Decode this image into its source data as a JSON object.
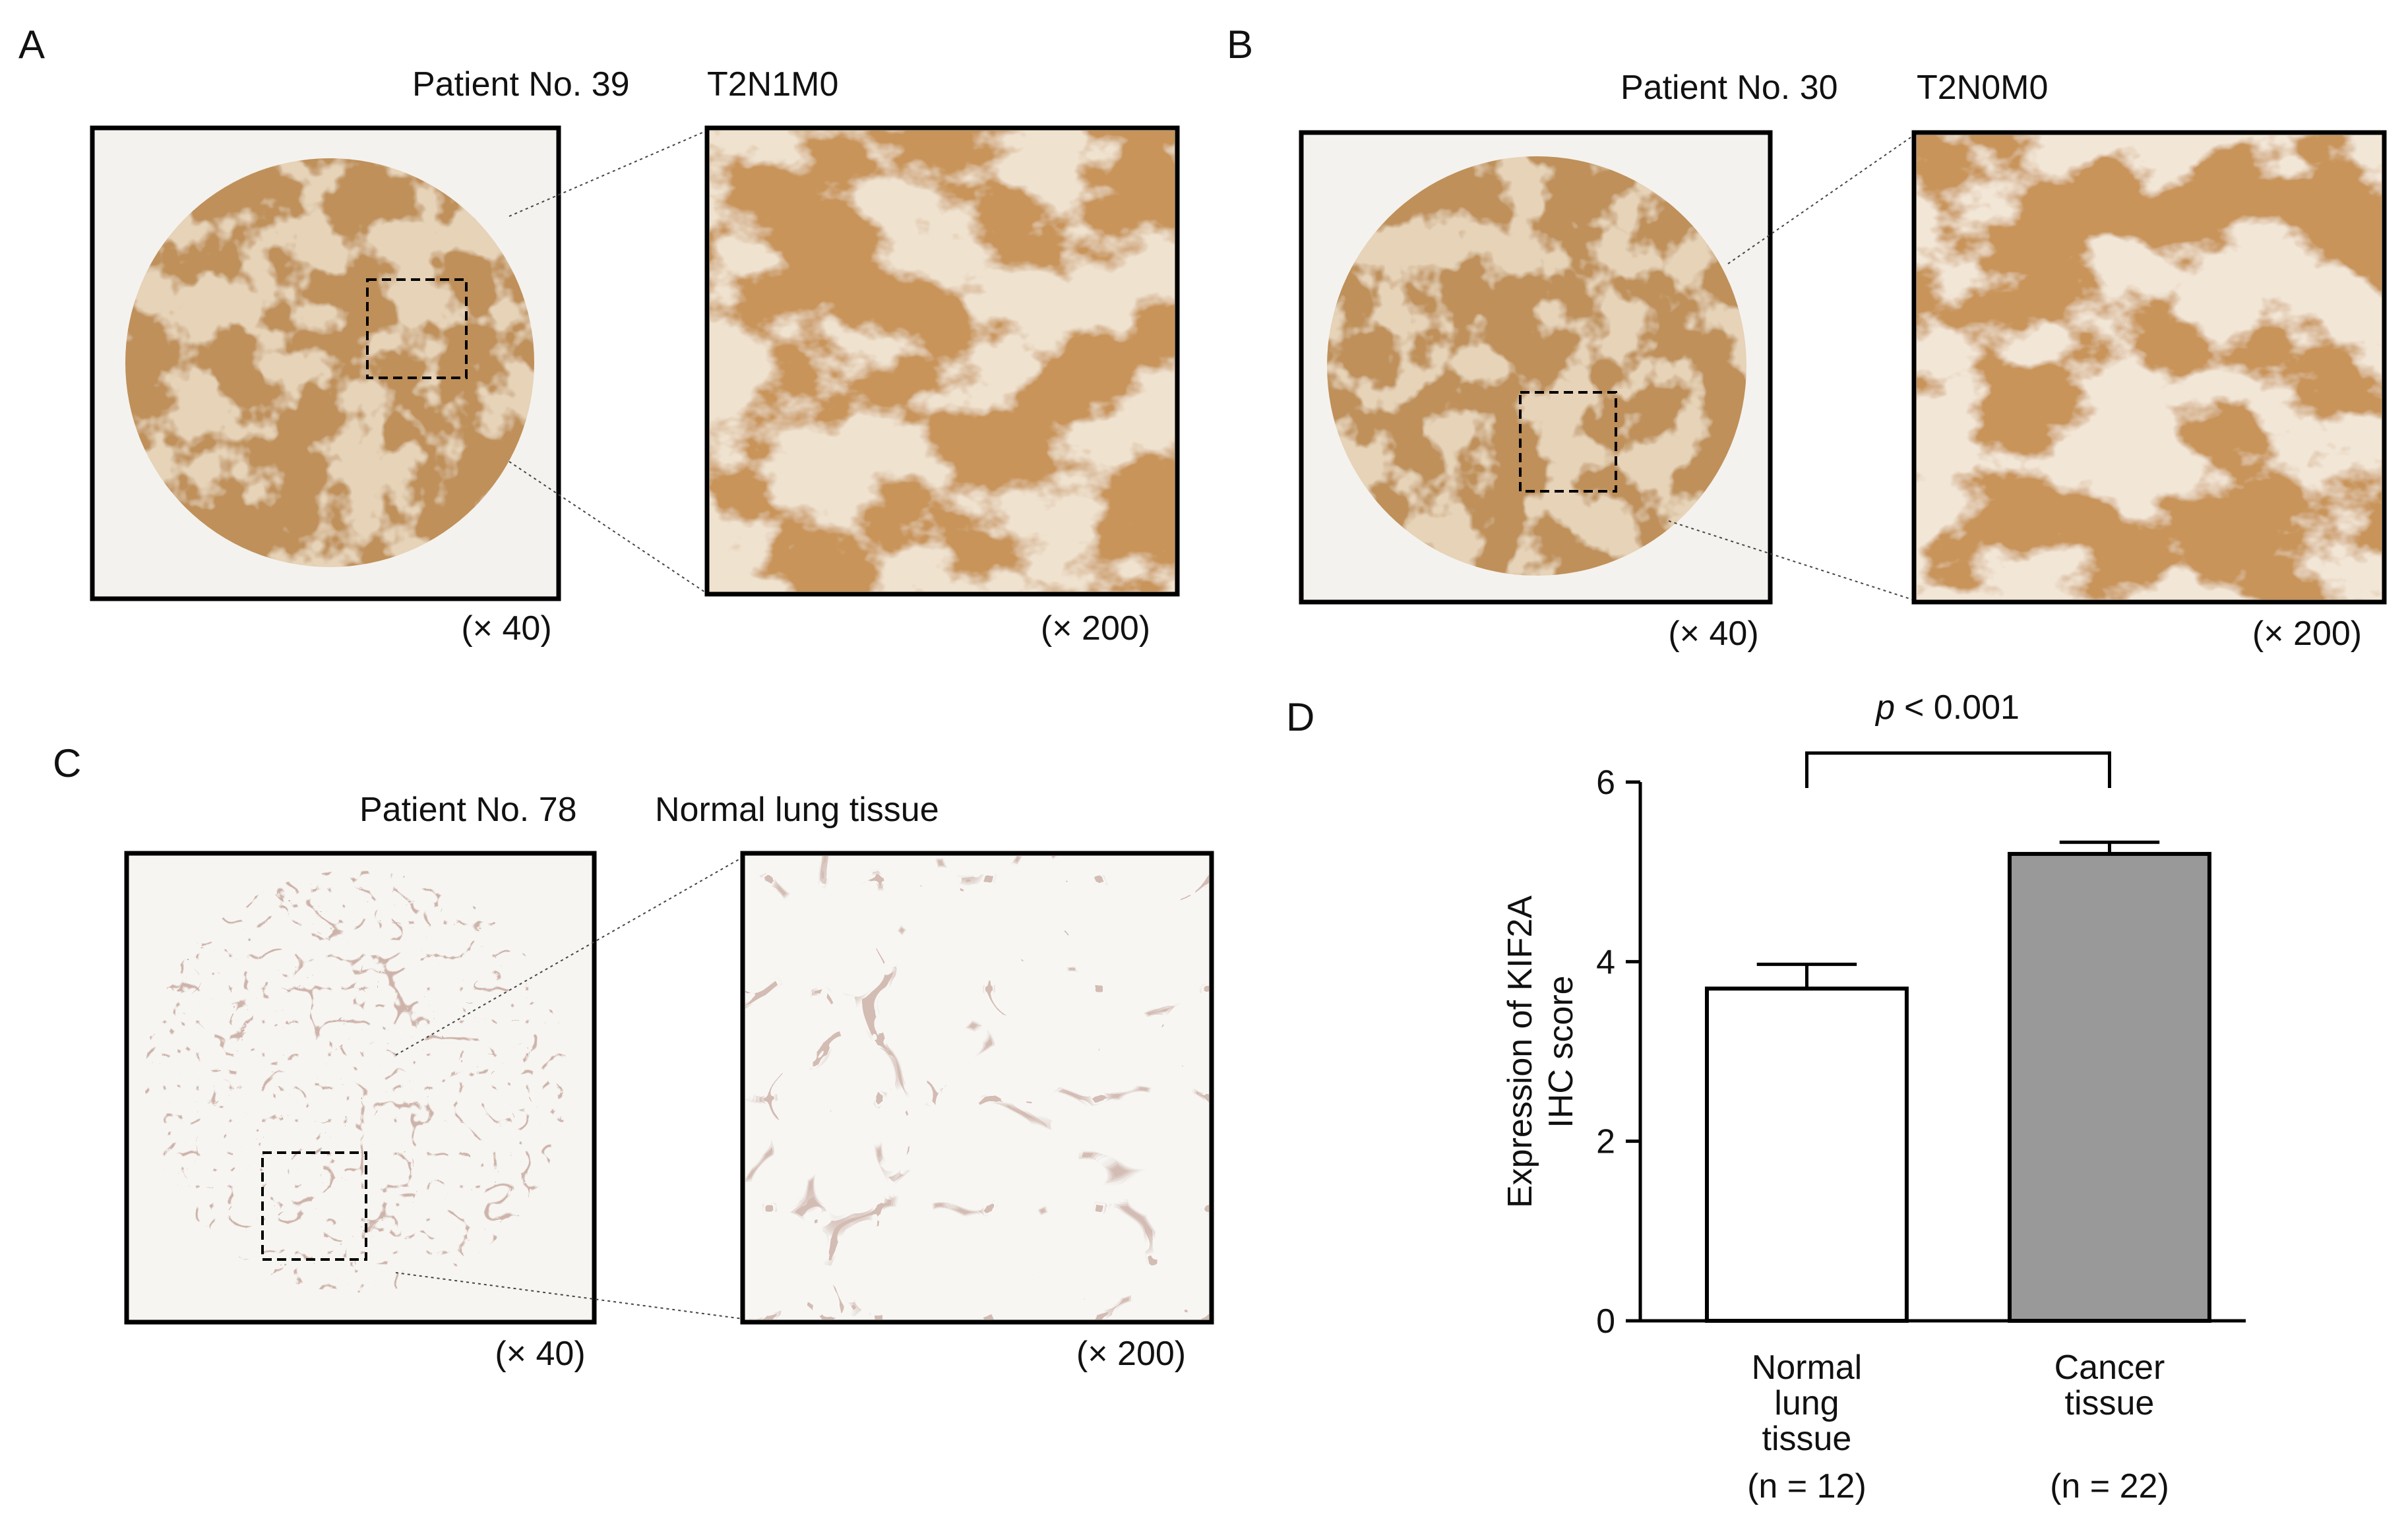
{
  "panels": [
    {
      "letter": "A",
      "patient": "Patient No. 39",
      "stage": "T2N1M0",
      "mag_low": "(× 40)",
      "mag_high": "(× 200)"
    },
    {
      "letter": "B",
      "patient": "Patient No. 30",
      "stage": "T2N0M0",
      "mag_low": "(× 40)",
      "mag_high": "(× 200)"
    },
    {
      "letter": "C",
      "patient": "Patient No. 78",
      "stage": "Normal lung tissue",
      "mag_low": "(× 40)",
      "mag_high": "(× 200)"
    }
  ],
  "chart_data": {
    "type": "bar",
    "panel_label": "D",
    "ylabel": [
      "Expression of KIF2A",
      "IHC score"
    ],
    "categories": [
      "Normal lung tissue",
      "Cancer tissue"
    ],
    "sample_sizes": [
      "(n = 12)",
      "(n = 22)"
    ],
    "values": [
      3.7,
      5.2
    ],
    "errors": [
      0.27,
      0.13
    ],
    "colors": [
      "#ffffff",
      "#999999"
    ],
    "ylim": [
      0,
      6
    ],
    "yticks": [
      0,
      2,
      4,
      6
    ],
    "annotation": {
      "symbol": "p",
      "text": "< 0.001"
    }
  }
}
